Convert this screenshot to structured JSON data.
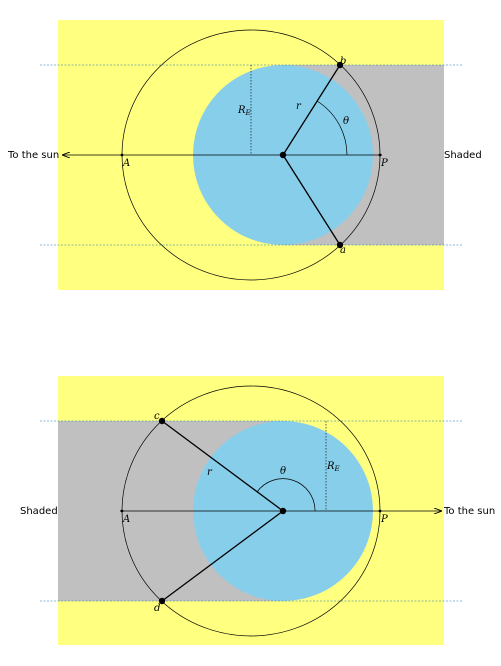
{
  "colors": {
    "sunlit": "#ffff80",
    "shade": "#c0c0c0",
    "earth": "#87ceeb",
    "guide": "#1f77b4",
    "ink": "#000000"
  },
  "panel_top": {
    "sun_label": "To the sun",
    "shade_label": "Shaded",
    "label_A": "A",
    "label_P": "P",
    "label_b": "b",
    "label_a": "a",
    "label_r": "r",
    "label_theta": "θ",
    "label_RE": "R",
    "label_RE_sub": "E"
  },
  "panel_bottom": {
    "sun_label": "To the sun",
    "shade_label": "Shaded",
    "label_A": "A",
    "label_P": "P",
    "label_c": "c",
    "label_d": "d",
    "label_r": "r",
    "label_theta": "θ",
    "label_RE": "R",
    "label_RE_sub": "E"
  }
}
